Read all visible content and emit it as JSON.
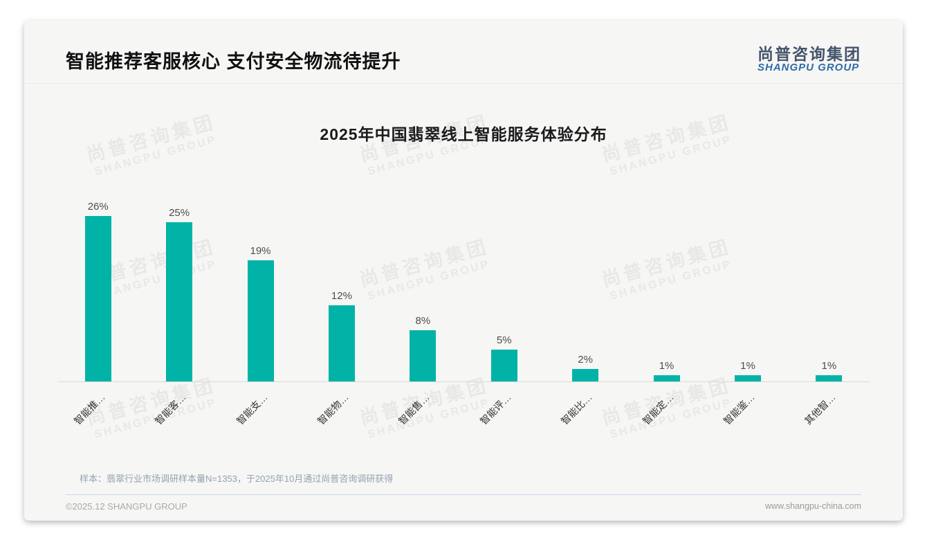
{
  "header": {
    "title": "智能推荐客服核心 支付安全物流待提升",
    "logo": {
      "cn": "尚普咨询集团",
      "en": "SHANGPU GROUP"
    }
  },
  "chart_data": {
    "type": "bar",
    "title": "2025年中国翡翠线上智能服务体验分布",
    "categories": [
      "智能推…",
      "智能客…",
      "智能支…",
      "智能物…",
      "智能售…",
      "智能评…",
      "智能比…",
      "智能定…",
      "智能鉴…",
      "其他智…"
    ],
    "values": [
      26,
      25,
      19,
      12,
      8,
      5,
      2,
      1,
      1,
      1
    ],
    "value_labels": [
      "26%",
      "25%",
      "19%",
      "12%",
      "8%",
      "5%",
      "2%",
      "1%",
      "1%",
      "1%"
    ],
    "unit": "%",
    "bar_color": "#00b3a6",
    "axis_line_color": "#d9d9d9",
    "ylim": [
      0,
      30
    ],
    "grid": false,
    "legend": "none"
  },
  "watermark": {
    "line1": "尚普咨询集团",
    "line2": "SHANGPU GROUP"
  },
  "note": "样本：翡翠行业市场调研样本量N=1353，于2025年10月通过尚普咨询调研获得",
  "footer": {
    "left": "©2025.12 SHANGPU GROUP",
    "right": "www.shangpu-china.com"
  }
}
